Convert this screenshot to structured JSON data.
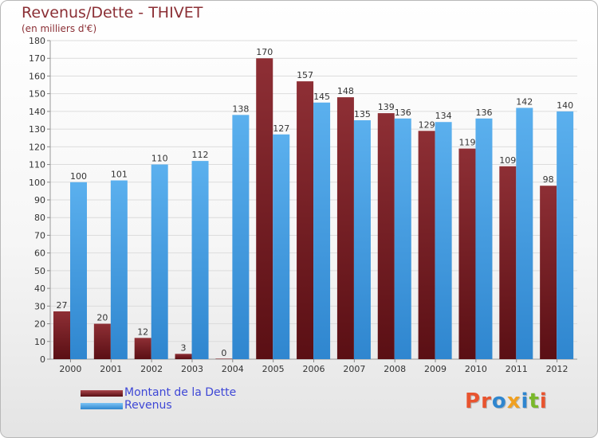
{
  "chart_data": {
    "type": "bar",
    "title": "Revenus/Dette - THIVET",
    "subtitle": "(en milliers d'€)",
    "xlabel": "",
    "ylabel": "",
    "categories": [
      "2000",
      "2001",
      "2002",
      "2003",
      "2004",
      "2005",
      "2006",
      "2007",
      "2008",
      "2009",
      "2010",
      "2011",
      "2012"
    ],
    "series": [
      {
        "name": "Montant de la Dette",
        "color": "#7a1f25",
        "values": [
          27,
          20,
          12,
          3,
          0,
          170,
          157,
          148,
          139,
          129,
          119,
          109,
          98
        ]
      },
      {
        "name": "Revenus",
        "color": "#4aa3e8",
        "values": [
          100,
          101,
          110,
          112,
          138,
          127,
          145,
          135,
          136,
          134,
          136,
          142,
          140
        ]
      }
    ],
    "ylim": [
      0,
      180
    ],
    "ytick_step": 10,
    "grid": true,
    "legend_position": "bottom-left"
  },
  "logo": {
    "text": "Proxiti"
  },
  "colors": {
    "title": "#8b2f35",
    "legend_text": "#3e47d6",
    "grid": "#dcdcdc"
  }
}
